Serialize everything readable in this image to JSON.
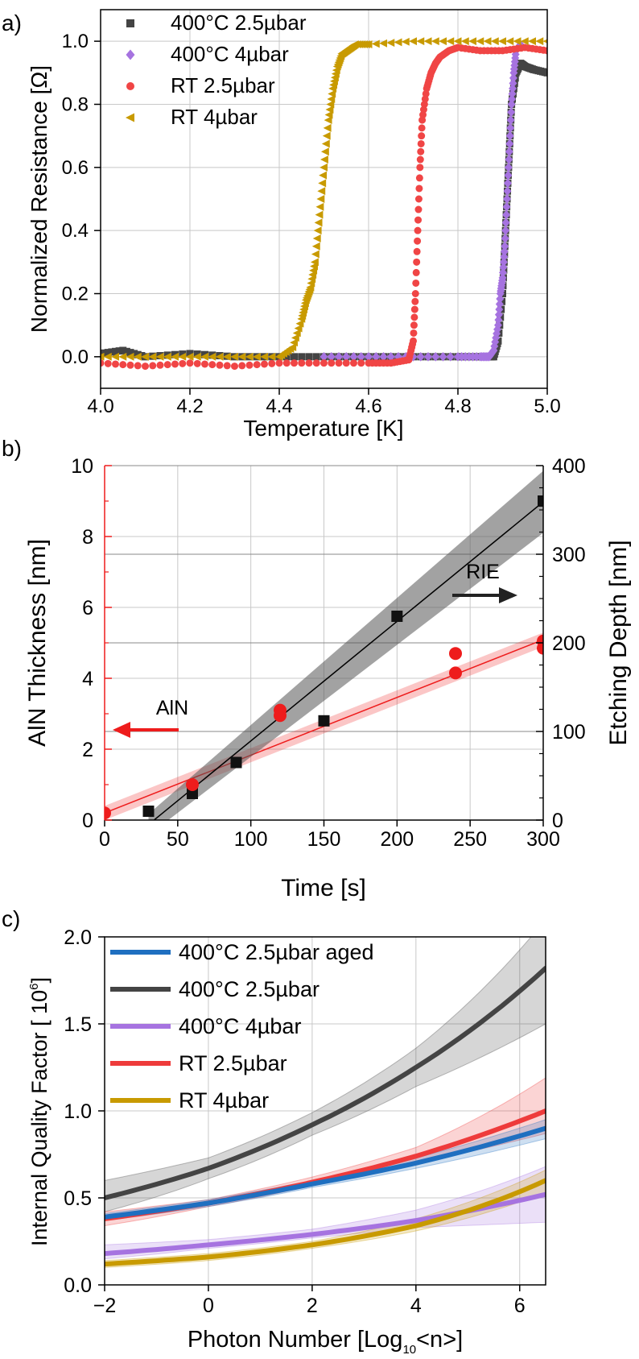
{
  "chart_data": [
    {
      "panel": "a)",
      "type": "scatter",
      "title": "",
      "xlabel": "Temperature [K]",
      "ylabel": "Normalized Resistance [Ω]",
      "xlim": [
        4.0,
        5.0
      ],
      "ylim": [
        -0.1,
        1.1
      ],
      "xticks": [
        "4.0",
        "4.2",
        "4.4",
        "4.6",
        "4.8",
        "5.0"
      ],
      "xtick_values": [
        4.0,
        4.2,
        4.4,
        4.6,
        4.8,
        5.0
      ],
      "yticks": [
        "0.0",
        "0.2",
        "0.4",
        "0.6",
        "0.8",
        "1.0"
      ],
      "ytick_values": [
        0.0,
        0.2,
        0.4,
        0.6,
        0.8,
        1.0
      ],
      "legend": "top-left",
      "series": [
        {
          "name": "400°C 2.5µbar",
          "color": "#444444",
          "marker": "square",
          "x": [
            4.0,
            4.05,
            4.1,
            4.2,
            4.3,
            4.4,
            4.5,
            4.6,
            4.7,
            4.8,
            4.86,
            4.88,
            4.89,
            4.9,
            4.905,
            4.91,
            4.915,
            4.92,
            4.93,
            4.94,
            4.95,
            4.97,
            5.0
          ],
          "y": [
            0.01,
            0.02,
            0.0,
            0.01,
            0.0,
            0.0,
            0.0,
            0.0,
            0.0,
            0.0,
            0.0,
            0.0,
            0.05,
            0.2,
            0.35,
            0.5,
            0.65,
            0.8,
            0.9,
            0.93,
            0.92,
            0.91,
            0.9
          ]
        },
        {
          "name": "400°C 4µbar",
          "color": "#a673e0",
          "marker": "diamond",
          "x": [
            4.5,
            4.6,
            4.7,
            4.8,
            4.85,
            4.87,
            4.88,
            4.89,
            4.895,
            4.9,
            4.905,
            4.91,
            4.915,
            4.92,
            4.925,
            4.93,
            4.94
          ],
          "y": [
            0.0,
            0.0,
            0.0,
            0.0,
            0.0,
            0.0,
            0.02,
            0.1,
            0.2,
            0.25,
            0.35,
            0.5,
            0.65,
            0.8,
            0.9,
            0.97,
            0.99
          ]
        },
        {
          "name": "RT 2.5µbar",
          "color": "#f04545",
          "marker": "circle",
          "x": [
            4.0,
            4.1,
            4.2,
            4.3,
            4.4,
            4.5,
            4.6,
            4.65,
            4.69,
            4.7,
            4.705,
            4.71,
            4.715,
            4.72,
            4.73,
            4.74,
            4.75,
            4.76,
            4.78,
            4.8,
            4.85,
            4.9,
            4.95,
            5.0
          ],
          "y": [
            -0.02,
            -0.03,
            -0.02,
            -0.03,
            -0.02,
            -0.02,
            -0.02,
            -0.02,
            -0.01,
            0.05,
            0.2,
            0.4,
            0.6,
            0.75,
            0.85,
            0.9,
            0.93,
            0.95,
            0.97,
            0.98,
            0.97,
            0.97,
            0.98,
            0.97
          ]
        },
        {
          "name": "RT 4µbar",
          "color": "#c89a00",
          "marker": "triangle-left",
          "x": [
            4.0,
            4.1,
            4.2,
            4.3,
            4.4,
            4.43,
            4.45,
            4.46,
            4.47,
            4.48,
            4.49,
            4.5,
            4.51,
            4.52,
            4.53,
            4.54,
            4.55,
            4.56,
            4.57,
            4.6,
            4.7,
            4.8,
            4.9,
            5.0
          ],
          "y": [
            0.0,
            0.0,
            0.0,
            0.0,
            0.0,
            0.03,
            0.12,
            0.18,
            0.22,
            0.3,
            0.45,
            0.6,
            0.75,
            0.85,
            0.92,
            0.96,
            0.97,
            0.98,
            0.99,
            0.99,
            1.0,
            1.0,
            1.0,
            1.0
          ]
        }
      ]
    },
    {
      "panel": "b)",
      "type": "scatter",
      "title": "",
      "xlabel": "Time [s]",
      "ylabel": "AlN Thickness [nm]",
      "ylabel_right": "Etching Depth [nm]",
      "xlim": [
        0,
        300
      ],
      "ylim": [
        0,
        10
      ],
      "ylim_right": [
        0,
        400
      ],
      "xticks": [
        "0",
        "50",
        "100",
        "150",
        "200",
        "250",
        "300"
      ],
      "xtick_values": [
        0,
        50,
        100,
        150,
        200,
        250,
        300
      ],
      "yticks": [
        "0",
        "2",
        "4",
        "6",
        "8",
        "10"
      ],
      "ytick_values": [
        0,
        2,
        4,
        6,
        8,
        10
      ],
      "yticks_right": [
        "0",
        "100",
        "200",
        "300",
        "400"
      ],
      "ytick_values_right": [
        0,
        100,
        200,
        300,
        400
      ],
      "annotations": [
        {
          "text": "AlN",
          "arrow": "left",
          "color": "#ee1c1c",
          "x": 60,
          "y": 1.75
        },
        {
          "text": "RIE",
          "arrow": "right",
          "color": "#222222",
          "x": 250,
          "y": 5.6
        }
      ],
      "series": [
        {
          "name": "AlN Thickness",
          "axis": "left",
          "color": "#ee1c1c",
          "marker": "circle",
          "x": [
            0,
            60,
            120,
            120,
            240,
            240,
            300,
            300
          ],
          "y": [
            0.2,
            1.0,
            3.1,
            2.95,
            4.7,
            4.15,
            5.05,
            4.85
          ],
          "fit": {
            "slope": 0.0163,
            "intercept": 0.2,
            "band": 0.2
          }
        },
        {
          "name": "Etching Depth",
          "axis": "right",
          "color": "#000000",
          "marker": "square",
          "x": [
            30,
            60,
            90,
            150,
            200,
            300
          ],
          "y": [
            10,
            30,
            65,
            112,
            230,
            360
          ],
          "fit": {
            "slope": 1.349,
            "intercept": -45.6,
            "band_start": 12,
            "band_end": 35
          }
        }
      ]
    },
    {
      "panel": "c)",
      "type": "line",
      "title": "",
      "xlabel_main": "Photon Number [Log",
      "xlabel_sub": "10",
      "xlabel_end": "<n>]",
      "ylabel": "Internal Quality Factor [ 10",
      "ylabel_sup": "6",
      "ylabel_end": "]",
      "xlim": [
        -2,
        6.5
      ],
      "ylim": [
        0.0,
        2.0
      ],
      "xticks": [
        "−2",
        "0",
        "2",
        "4",
        "6"
      ],
      "xtick_values": [
        -2,
        0,
        2,
        4,
        6
      ],
      "yticks": [
        "0.0",
        "0.5",
        "1.0",
        "1.5",
        "2.0"
      ],
      "ytick_values": [
        0.0,
        0.5,
        1.0,
        1.5,
        2.0
      ],
      "legend": "top-left",
      "series": [
        {
          "name": "400°C 2.5µbar aged",
          "color": "#1f6fc0",
          "x": [
            -2,
            0,
            2,
            4,
            6.5
          ],
          "y": [
            0.39,
            0.47,
            0.58,
            0.7,
            0.9
          ],
          "band_lo": [
            0.37,
            0.45,
            0.56,
            0.67,
            0.84
          ],
          "band_hi": [
            0.41,
            0.49,
            0.6,
            0.73,
            0.95
          ]
        },
        {
          "name": "400°C 2.5µbar",
          "color": "#444444",
          "x": [
            -2,
            0,
            2,
            4,
            6.5
          ],
          "y": [
            0.5,
            0.67,
            0.92,
            1.25,
            1.82
          ],
          "band_lo": [
            0.42,
            0.61,
            0.86,
            1.14,
            1.5
          ],
          "band_hi": [
            0.6,
            0.73,
            0.99,
            1.36,
            2.1
          ]
        },
        {
          "name": "400°C 4µbar",
          "color": "#a673e0",
          "x": [
            -2,
            0,
            2,
            4,
            6.5
          ],
          "y": [
            0.18,
            0.23,
            0.29,
            0.37,
            0.52
          ],
          "band_lo": [
            0.15,
            0.21,
            0.27,
            0.33,
            0.36
          ],
          "band_hi": [
            0.23,
            0.26,
            0.32,
            0.43,
            0.68
          ]
        },
        {
          "name": "RT 2.5µbar",
          "color": "#ee3b3b",
          "x": [
            -2,
            0,
            2,
            4,
            6.5
          ],
          "y": [
            0.38,
            0.47,
            0.59,
            0.74,
            1.0
          ],
          "band_lo": [
            0.34,
            0.45,
            0.57,
            0.7,
            0.87
          ],
          "band_hi": [
            0.42,
            0.49,
            0.62,
            0.79,
            1.19
          ]
        },
        {
          "name": "RT 4µbar",
          "color": "#c89a00",
          "x": [
            -2,
            0,
            2,
            4,
            6.5
          ],
          "y": [
            0.12,
            0.16,
            0.23,
            0.34,
            0.6
          ],
          "band_lo": [
            0.1,
            0.14,
            0.21,
            0.31,
            0.53
          ],
          "band_hi": [
            0.14,
            0.18,
            0.25,
            0.38,
            0.66
          ]
        }
      ]
    }
  ]
}
